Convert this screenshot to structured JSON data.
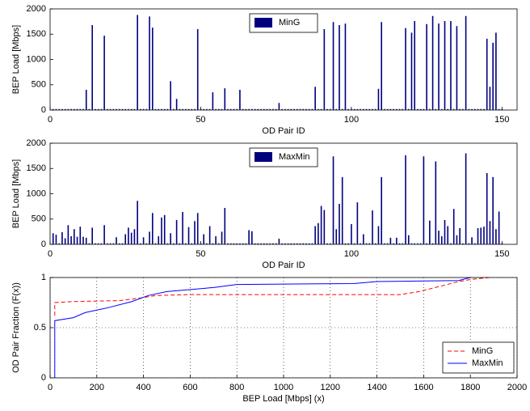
{
  "chart_data": [
    {
      "type": "bar",
      "xlabel": "OD Pair ID",
      "ylabel": "BEP Load [Mbps]",
      "xlim": [
        0,
        155
      ],
      "ylim": [
        0,
        2000
      ],
      "xticks": [
        0,
        50,
        100,
        150
      ],
      "yticks": [
        0,
        500,
        1000,
        1500,
        2000
      ],
      "legend": "upper center",
      "x": [
        1,
        2,
        3,
        4,
        5,
        6,
        7,
        8,
        9,
        10,
        11,
        12,
        13,
        14,
        15,
        16,
        17,
        18,
        19,
        20,
        21,
        22,
        23,
        24,
        25,
        26,
        27,
        28,
        29,
        30,
        31,
        32,
        33,
        34,
        35,
        36,
        37,
        38,
        39,
        40,
        41,
        42,
        43,
        44,
        45,
        46,
        47,
        48,
        49,
        50,
        51,
        52,
        53,
        54,
        55,
        56,
        57,
        58,
        59,
        60,
        61,
        62,
        63,
        64,
        65,
        66,
        67,
        68,
        69,
        70,
        71,
        72,
        73,
        74,
        75,
        76,
        77,
        78,
        79,
        80,
        81,
        82,
        83,
        84,
        85,
        86,
        87,
        88,
        89,
        90,
        91,
        92,
        93,
        94,
        95,
        96,
        97,
        98,
        99,
        100,
        101,
        102,
        103,
        104,
        105,
        106,
        107,
        108,
        109,
        110,
        111,
        112,
        113,
        114,
        115,
        116,
        117,
        118,
        119,
        120,
        121,
        122,
        123,
        124,
        125,
        126,
        127,
        128,
        129,
        130,
        131,
        132,
        133,
        134,
        135,
        136,
        137,
        138,
        139,
        140,
        141,
        142,
        143,
        144,
        145,
        146,
        147,
        148,
        149,
        150
      ],
      "series": [
        {
          "name": "MinG",
          "color": "#00007f",
          "values": [
            20,
            20,
            20,
            20,
            20,
            20,
            20,
            20,
            20,
            20,
            20,
            400,
            20,
            1680,
            20,
            20,
            20,
            1470,
            20,
            20,
            20,
            20,
            20,
            20,
            20,
            20,
            20,
            20,
            1880,
            20,
            20,
            20,
            1850,
            1630,
            20,
            20,
            20,
            20,
            20,
            570,
            20,
            220,
            20,
            20,
            20,
            20,
            20,
            20,
            1600,
            20,
            20,
            20,
            20,
            350,
            20,
            20,
            20,
            430,
            20,
            20,
            20,
            20,
            400,
            20,
            20,
            20,
            20,
            20,
            20,
            20,
            20,
            20,
            20,
            20,
            20,
            140,
            20,
            20,
            20,
            20,
            20,
            20,
            20,
            20,
            20,
            20,
            20,
            460,
            20,
            20,
            1600,
            20,
            20,
            1740,
            20,
            1680,
            20,
            1710,
            20,
            20,
            20,
            20,
            20,
            20,
            20,
            20,
            20,
            20,
            420,
            1740,
            20,
            20,
            20,
            20,
            20,
            20,
            20,
            1620,
            20,
            1530,
            1760,
            20,
            20,
            20,
            1700,
            20,
            1860,
            20,
            1710,
            20,
            1760,
            20,
            1760,
            20,
            1660,
            20,
            20,
            1860,
            20,
            20,
            20,
            20,
            20,
            20,
            1410,
            460,
            1330,
            1530,
            20,
            20
          ]
        }
      ]
    },
    {
      "type": "bar",
      "xlabel": "OD Pair ID",
      "ylabel": "BEP Load [Mbps]",
      "xlim": [
        0,
        155
      ],
      "ylim": [
        0,
        2000
      ],
      "xticks": [
        0,
        50,
        100,
        150
      ],
      "yticks": [
        0,
        500,
        1000,
        1500,
        2000
      ],
      "legend": "upper center",
      "x": [
        1,
        2,
        3,
        4,
        5,
        6,
        7,
        8,
        9,
        10,
        11,
        12,
        13,
        14,
        15,
        16,
        17,
        18,
        19,
        20,
        21,
        22,
        23,
        24,
        25,
        26,
        27,
        28,
        29,
        30,
        31,
        32,
        33,
        34,
        35,
        36,
        37,
        38,
        39,
        40,
        41,
        42,
        43,
        44,
        45,
        46,
        47,
        48,
        49,
        50,
        51,
        52,
        53,
        54,
        55,
        56,
        57,
        58,
        59,
        60,
        61,
        62,
        63,
        64,
        65,
        66,
        67,
        68,
        69,
        70,
        71,
        72,
        73,
        74,
        75,
        76,
        77,
        78,
        79,
        80,
        81,
        82,
        83,
        84,
        85,
        86,
        87,
        88,
        89,
        90,
        91,
        92,
        93,
        94,
        95,
        96,
        97,
        98,
        99,
        100,
        101,
        102,
        103,
        104,
        105,
        106,
        107,
        108,
        109,
        110,
        111,
        112,
        113,
        114,
        115,
        116,
        117,
        118,
        119,
        120,
        121,
        122,
        123,
        124,
        125,
        126,
        127,
        128,
        129,
        130,
        131,
        132,
        133,
        134,
        135,
        136,
        137,
        138,
        139,
        140,
        141,
        142,
        143,
        144,
        145,
        146,
        147,
        148,
        149,
        150
      ],
      "series": [
        {
          "name": "MaxMin",
          "color": "#00007f",
          "values": [
            220,
            190,
            20,
            240,
            120,
            380,
            160,
            300,
            150,
            350,
            150,
            130,
            20,
            330,
            20,
            20,
            20,
            380,
            20,
            20,
            20,
            140,
            20,
            20,
            200,
            330,
            230,
            300,
            860,
            20,
            140,
            20,
            250,
            620,
            20,
            160,
            530,
            580,
            20,
            220,
            20,
            480,
            20,
            640,
            20,
            340,
            20,
            460,
            620,
            20,
            200,
            20,
            360,
            20,
            160,
            20,
            250,
            720,
            20,
            20,
            20,
            20,
            20,
            20,
            20,
            280,
            260,
            20,
            20,
            20,
            20,
            20,
            20,
            20,
            20,
            110,
            20,
            20,
            20,
            20,
            20,
            20,
            20,
            20,
            20,
            20,
            20,
            360,
            420,
            760,
            680,
            20,
            20,
            1740,
            300,
            800,
            1330,
            20,
            20,
            400,
            20,
            830,
            20,
            200,
            20,
            20,
            670,
            20,
            360,
            1330,
            20,
            20,
            130,
            20,
            130,
            20,
            20,
            1760,
            180,
            20,
            20,
            20,
            20,
            1740,
            20,
            470,
            20,
            1640,
            270,
            160,
            480,
            360,
            20,
            700,
            180,
            320,
            20,
            1800,
            20,
            140,
            20,
            320,
            330,
            350,
            1410,
            460,
            1330,
            300,
            650,
            20
          ]
        }
      ]
    },
    {
      "type": "line",
      "xlabel": "BEP Load [Mbps] (x)",
      "ylabel": "OD Pair Fraction (F(x))",
      "xlim": [
        0,
        2000
      ],
      "ylim": [
        0,
        1
      ],
      "xticks": [
        0,
        200,
        400,
        600,
        800,
        1000,
        1200,
        1400,
        1600,
        1800,
        2000
      ],
      "yticks": [
        0,
        0.5,
        1
      ],
      "grid": true,
      "legend": "lower right",
      "series": [
        {
          "name": "MinG",
          "color": "#ff0000",
          "dash": true,
          "x": [
            20,
            20,
            100,
            300,
            400,
            450,
            600,
            1500,
            1580,
            1650,
            1750,
            1800,
            1880
          ],
          "values": [
            0.62,
            0.75,
            0.76,
            0.77,
            0.8,
            0.82,
            0.83,
            0.83,
            0.86,
            0.9,
            0.96,
            0.98,
            1
          ]
        },
        {
          "name": "MaxMin",
          "color": "#0000ff",
          "dash": false,
          "x": [
            20,
            20,
            100,
            150,
            250,
            350,
            420,
            500,
            700,
            800,
            1300,
            1400,
            1750,
            1800
          ],
          "values": [
            0,
            0.57,
            0.6,
            0.65,
            0.7,
            0.76,
            0.82,
            0.86,
            0.9,
            0.93,
            0.94,
            0.96,
            0.97,
            1
          ]
        }
      ]
    }
  ]
}
